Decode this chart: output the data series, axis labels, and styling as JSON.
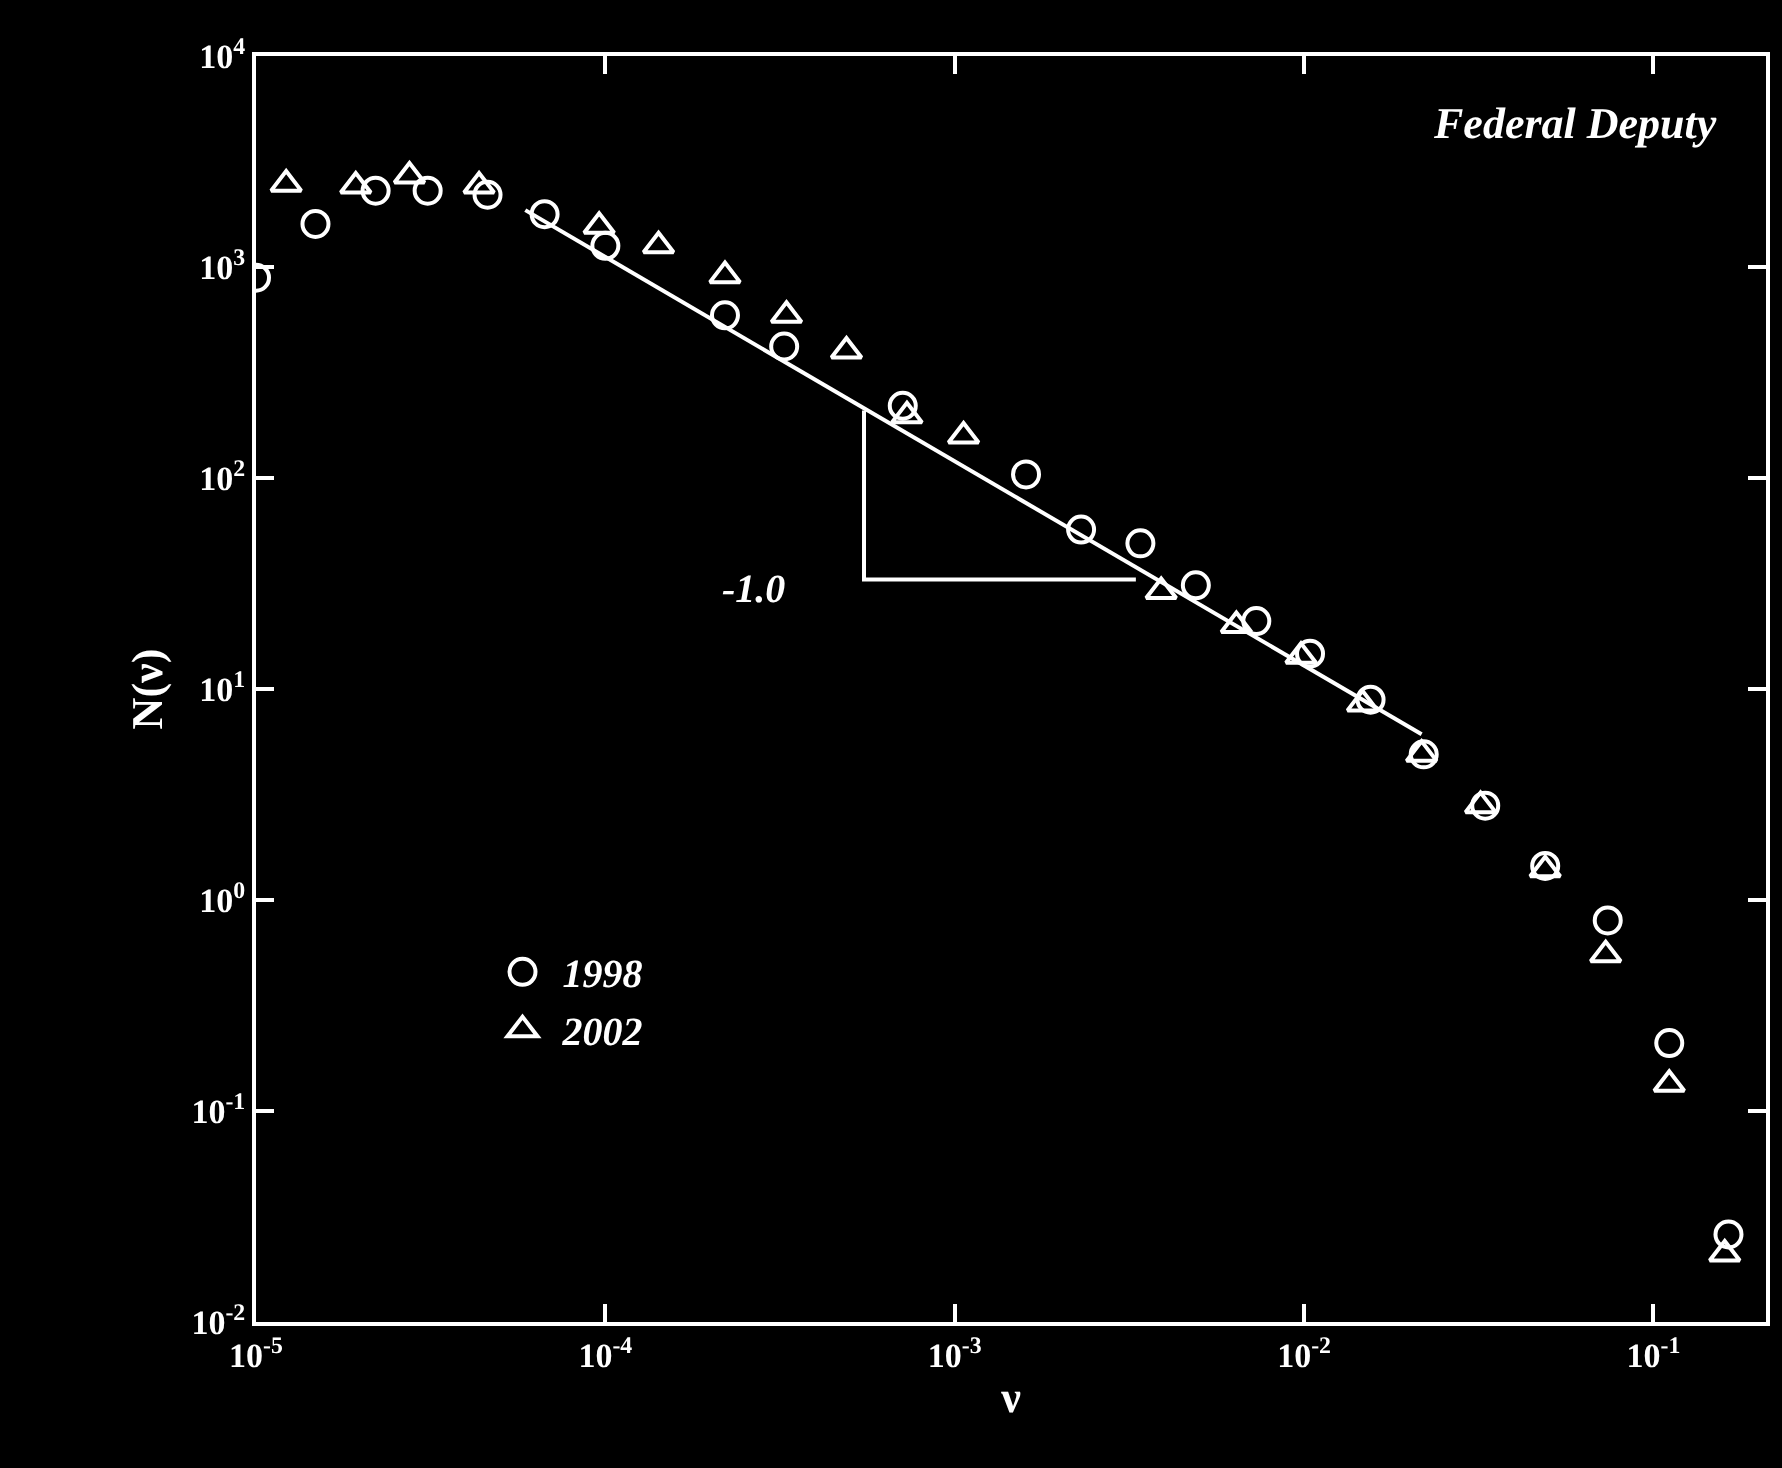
{
  "chart_data": {
    "type": "scatter",
    "xlabel": "ν",
    "ylabel": "N(ν)",
    "log": "xy",
    "xlim": [
      1e-05,
      0.21
    ],
    "ylim": [
      0.01,
      10000
    ],
    "xticks": [
      {
        "value": 1e-05,
        "label": "10$^{-5}$"
      },
      {
        "value": 0.0001,
        "label": "10$^{-4}$"
      },
      {
        "value": 0.001,
        "label": "10$^{-3}$"
      },
      {
        "value": 0.01,
        "label": "10$^{-2}$"
      },
      {
        "value": 0.1,
        "label": "10$^{-1}$"
      }
    ],
    "yticks": [
      {
        "value": 0.01,
        "label": "10$^{-2}$"
      },
      {
        "value": 0.1,
        "label": "10$^{-1}$"
      },
      {
        "value": 1,
        "label": "10$^{0}$"
      },
      {
        "value": 10,
        "label": "10$^{1}$"
      },
      {
        "value": 100,
        "label": "10$^{2}$"
      },
      {
        "value": 1000,
        "label": "10$^{3}$"
      },
      {
        "value": 10000,
        "label": "10$^{4}$"
      }
    ],
    "grid": false,
    "legend": "bottom left",
    "annotations": [
      "Federal Deputy",
      "-1.0"
    ],
    "series": [
      {
        "name": "1998",
        "color": "#ffffff",
        "marker": "circle",
        "x": [
          1e-05,
          1.48e-05,
          2.2e-05,
          3.1e-05,
          4.6e-05,
          6.7e-05,
          0.0001,
          0.00022,
          0.000325,
          0.00071,
          0.0016,
          0.0023,
          0.0034,
          0.0049,
          0.0073,
          0.0104,
          0.0155,
          0.022,
          0.033,
          0.049,
          0.074,
          0.111,
          0.164
        ],
        "values": [
          890,
          1600,
          2300,
          2300,
          2200,
          1780,
          1260,
          590,
          420,
          220,
          104,
          57,
          49,
          31,
          21,
          14.7,
          8.9,
          4.9,
          2.8,
          1.45,
          0.8,
          0.21,
          0.026
        ]
      },
      {
        "name": "2002",
        "color": "#ffffff",
        "marker": "triangle",
        "x": [
          1.22e-05,
          1.93e-05,
          2.75e-05,
          4.35e-05,
          9.6e-05,
          0.000142,
          0.00022,
          0.00033,
          0.00049,
          0.00073,
          0.00106,
          0.0039,
          0.0064,
          0.0098,
          0.0147,
          0.0217,
          0.032,
          0.049,
          0.073,
          0.111,
          0.16
        ],
        "values": [
          2470,
          2420,
          2700,
          2420,
          1560,
          1260,
          910,
          590,
          400,
          197,
          158,
          29,
          20,
          14.3,
          8.5,
          4.9,
          2.8,
          1.39,
          0.55,
          0.134,
          0.021
        ]
      },
      {
        "type": "line",
        "color": "#ffffff",
        "marker": "none",
        "x": [
          5.9e-05,
          0.0217
        ],
        "values": [
          1860,
          6.1
        ]
      },
      {
        "type": "line",
        "color": "#ffffff",
        "marker": "none",
        "x": [
          0.00055,
          0.00055,
          0.0033
        ],
        "values": [
          209,
          33,
          33
        ]
      }
    ]
  }
}
